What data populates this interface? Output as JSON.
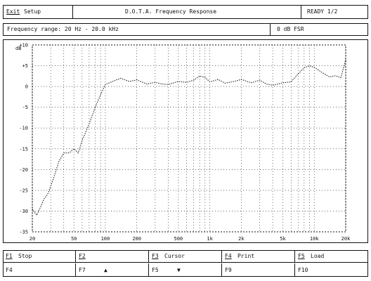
{
  "title_bar": {
    "exit_label": "Exit",
    "mode_label": "Setup",
    "title": "D.O.T.A. Frequency Response",
    "status": "READY 1/2"
  },
  "info_bar": {
    "sweep_text": "Frequency range: 20 Hz - 20.0 kHz",
    "level_text": "0 dB FSR"
  },
  "chart_data": {
    "type": "line",
    "ylabel": "dB",
    "y_ticks": [
      "+10",
      "+5",
      "0",
      "-5",
      "-10",
      "-15",
      "-20",
      "-25",
      "-30",
      "-35"
    ],
    "x_ticks": [
      "20",
      "50",
      "100",
      "200",
      "500",
      "1k",
      "2k",
      "5k",
      "10k",
      "20k"
    ],
    "x": [
      20,
      22,
      24,
      26,
      28,
      30,
      33,
      36,
      40,
      45,
      50,
      55,
      60,
      70,
      80,
      90,
      100,
      120,
      140,
      170,
      200,
      250,
      300,
      350,
      400,
      500,
      600,
      700,
      800,
      900,
      1000,
      1200,
      1400,
      1700,
      2000,
      2500,
      3000,
      3500,
      4000,
      4500,
      5000,
      6000,
      7000,
      8000,
      9000,
      10000,
      12000,
      14000,
      16000,
      18000,
      20000
    ],
    "y": [
      -29.5,
      -31,
      -29,
      -27,
      -26,
      -24,
      -21,
      -18,
      -16,
      -16,
      -15,
      -16,
      -13,
      -9,
      -5,
      -2,
      0.5,
      1.3,
      2,
      1.2,
      1.6,
      0.6,
      1,
      0.6,
      0.5,
      1.2,
      1,
      1.5,
      2.5,
      2.2,
      1.1,
      1.7,
      0.8,
      1.2,
      1.7,
      0.9,
      1.5,
      0.6,
      0.3,
      0.6,
      0.9,
      1.1,
      3,
      4.5,
      5,
      4.6,
      3.3,
      2.3,
      2.6,
      2.1,
      6.5
    ],
    "ylim": [
      -35,
      10
    ],
    "xlim": [
      20,
      20000
    ],
    "xscale": "log",
    "grid": true
  },
  "function_keys": [
    {
      "key": "F1",
      "label": "Stop",
      "value": "F4"
    },
    {
      "key": "F2",
      "label": "",
      "value": "F7",
      "arrow": "▲"
    },
    {
      "key": "F3",
      "label": "Cursor",
      "value": "F5",
      "arrow": "▼"
    },
    {
      "key": "F4",
      "label": "Print",
      "value": "F9"
    },
    {
      "key": "F5",
      "label": "Load",
      "value": "F10"
    }
  ]
}
